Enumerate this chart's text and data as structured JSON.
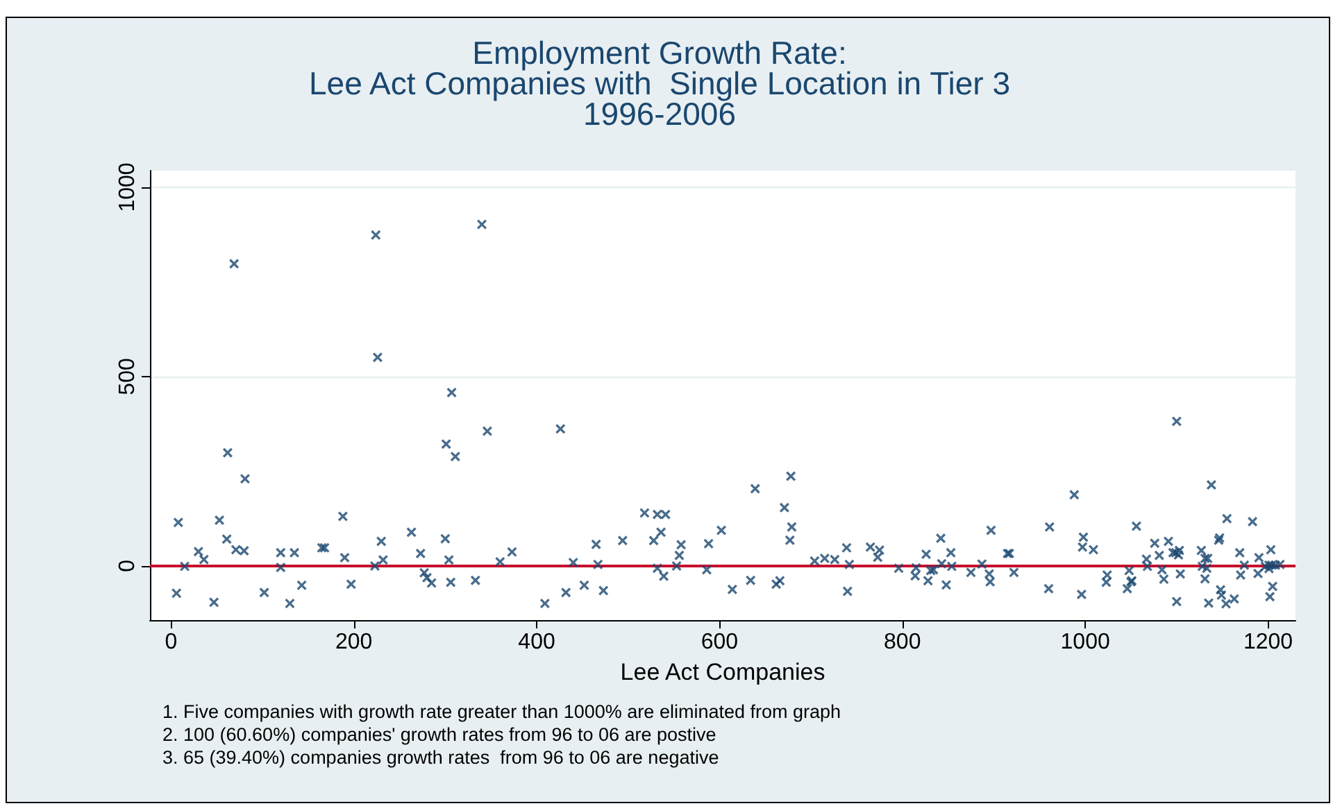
{
  "chart_data": {
    "type": "scatter",
    "title": "Employment Growth Rate:\nLee Act Companies with  Single Location in Tier 3\n1996-2006",
    "xlabel": "Lee Act Companies",
    "annotations": [
      "1. Five companies with growth rate greater than 1000% are eliminated from graph",
      "2. 100 (60.60%) companies' growth rates from 96 to 06 are postive",
      "3. 65 (39.40%) companies growth rates  from 96 to 06 are negative"
    ],
    "xlim": [
      -23,
      1230
    ],
    "xticks": [
      0,
      200,
      400,
      600,
      800,
      1000,
      1200
    ],
    "ylim": [
      -143,
      1044
    ],
    "yticks": [
      0,
      500,
      1000
    ],
    "grid": "y",
    "marker": "cross",
    "ref_lines": [
      {
        "axis": "y",
        "value": 0,
        "label": null,
        "color": "#c8102e"
      }
    ],
    "series": [
      {
        "color": "#1a476f",
        "x": [
          69,
          224,
          340,
          226,
          307,
          62,
          81,
          301,
          311,
          346,
          426,
          8,
          6,
          15,
          30,
          36,
          47,
          53,
          61,
          71,
          80,
          102,
          120,
          120,
          130,
          135,
          143,
          165,
          168,
          188,
          190,
          197,
          223,
          230,
          232,
          263,
          273,
          277,
          280,
          285,
          300,
          304,
          306,
          333,
          360,
          373,
          409,
          432,
          440,
          452,
          465,
          467,
          473,
          494,
          518,
          528,
          532,
          541,
          532,
          536,
          539,
          553,
          556,
          558,
          586,
          588,
          602,
          614,
          634,
          639,
          662,
          666,
          671,
          678,
          679,
          677,
          704,
          715,
          726,
          739,
          742,
          740,
          765,
          773,
          775,
          796,
          814,
          815,
          826,
          828,
          831,
          834,
          842,
          843,
          848,
          853,
          854,
          875,
          887,
          895,
          896,
          897,
          915,
          917,
          922,
          960,
          961,
          988,
          996,
          997,
          998,
          1009,
          1023,
          1024,
          1046,
          1048,
          1050,
          1051,
          1056,
          1067,
          1068,
          1076,
          1081,
          1084,
          1086,
          1091,
          1096,
          1099,
          1103,
          1102,
          1100,
          1104,
          1100,
          1138,
          1127,
          1128,
          1131,
          1131,
          1134,
          1133,
          1135,
          1146,
          1147,
          1148,
          1149,
          1155,
          1154,
          1163,
          1169,
          1170,
          1174,
          1183,
          1189,
          1190,
          1197,
          1201,
          1204,
          1208,
          1213,
          1201,
          1203,
          1202,
          1205
        ],
        "values": [
          798,
          874,
          902,
          551,
          458,
          299,
          230,
          322,
          289,
          356,
          362,
          115,
          -72,
          -1,
          38,
          17,
          -96,
          121,
          71,
          43,
          40,
          -70,
          35,
          -4,
          -99,
          35,
          -51,
          48,
          48,
          131,
          22,
          -48,
          0,
          65,
          16,
          89,
          33,
          -18,
          -31,
          -45,
          72,
          16,
          -43,
          -38,
          11,
          37,
          -99,
          -70,
          9,
          -51,
          57,
          4,
          -65,
          67,
          140,
          67,
          136,
          136,
          -6,
          89,
          -27,
          0,
          28,
          56,
          -10,
          59,
          94,
          -62,
          -38,
          204,
          -48,
          -39,
          154,
          237,
          103,
          68,
          13,
          20,
          17,
          48,
          4,
          -67,
          50,
          23,
          42,
          -6,
          -26,
          -5,
          31,
          -39,
          -12,
          -10,
          73,
          6,
          -50,
          35,
          -1,
          -17,
          5,
          -21,
          -42,
          94,
          33,
          33,
          -17,
          -60,
          103,
          188,
          -75,
          50,
          76,
          43,
          -43,
          -24,
          -60,
          -12,
          -42,
          -39,
          105,
          18,
          -1,
          60,
          28,
          -10,
          -35,
          65,
          35,
          35,
          41,
          29,
          -94,
          -21,
          382,
          214,
          41,
          -1,
          -34,
          20,
          20,
          -6,
          -98,
          68,
          74,
          -63,
          -77,
          125,
          -100,
          -87,
          35,
          -24,
          2,
          117,
          -20,
          22,
          -1,
          2,
          2,
          2,
          4,
          -7,
          43,
          -81,
          -54
        ]
      }
    ]
  }
}
